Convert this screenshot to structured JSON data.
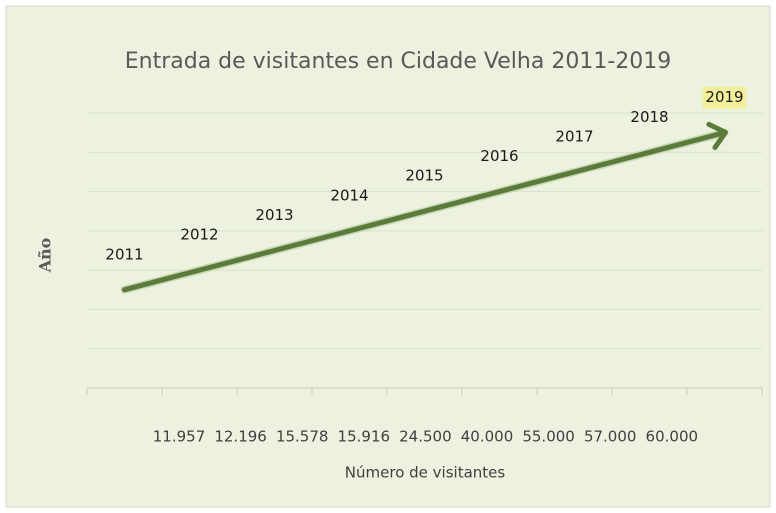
{
  "chart_data": {
    "type": "line",
    "title": "Entrada de visitantes en Cidade Velha 2011-2019",
    "xlabel": "Número de visitantes",
    "ylabel": "Año",
    "categories": [
      "11.957",
      "12.196",
      "15.578",
      "15.916",
      "24.500",
      "40.000",
      "55.000",
      "57.000",
      "60.000"
    ],
    "values": [
      2011,
      2012,
      2013,
      2014,
      2015,
      2016,
      2017,
      2018,
      2019
    ],
    "color": "#5b7b3a",
    "ylim": [
      2006,
      2020
    ],
    "yticks": [
      2006,
      2008,
      2010,
      2012,
      2014,
      2016,
      2018,
      2020
    ],
    "grid": true
  }
}
